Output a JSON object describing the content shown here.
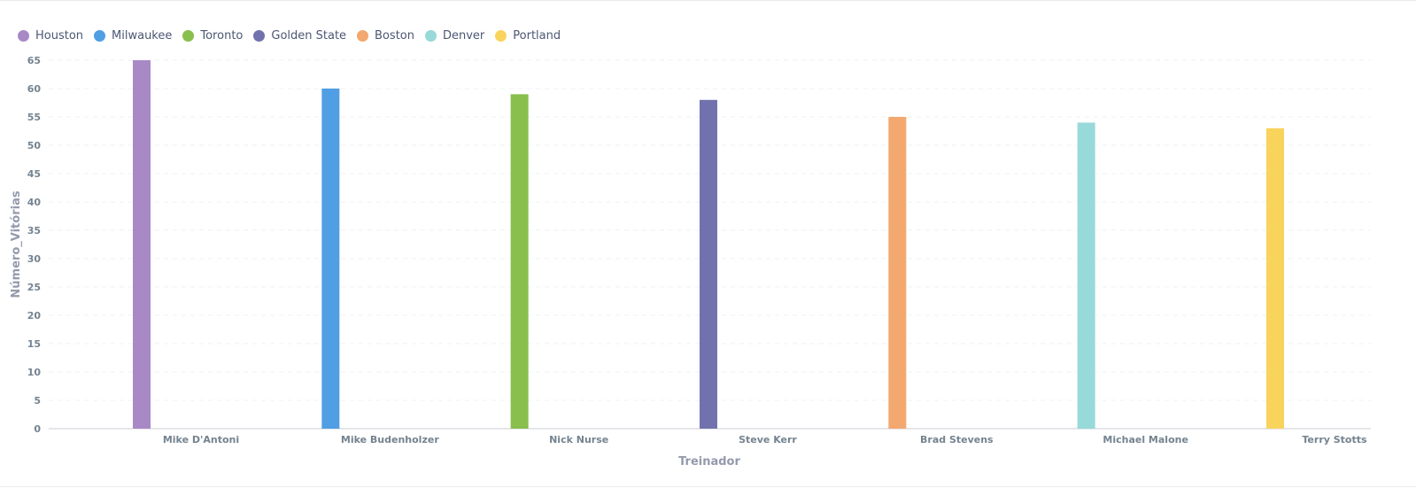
{
  "legend": [
    {
      "label": "Houston",
      "color": "#a989c5"
    },
    {
      "label": "Milwaukee",
      "color": "#509ee3"
    },
    {
      "label": "Toronto",
      "color": "#88bf4d"
    },
    {
      "label": "Golden State",
      "color": "#7172ad"
    },
    {
      "label": "Boston",
      "color": "#f2a86f"
    },
    {
      "label": "Denver",
      "color": "#98d9d9"
    },
    {
      "label": "Portland",
      "color": "#f9d45c"
    }
  ],
  "chart_data": {
    "type": "bar",
    "categories": [
      "Mike D'Antoni",
      "Mike Budenholzer",
      "Nick Nurse",
      "Steve Kerr",
      "Brad Stevens",
      "Michael Malone",
      "Terry Stotts"
    ],
    "series": [
      {
        "name": "Houston",
        "values": [
          65,
          null,
          null,
          null,
          null,
          null,
          null
        ]
      },
      {
        "name": "Milwaukee",
        "values": [
          null,
          60,
          null,
          null,
          null,
          null,
          null
        ]
      },
      {
        "name": "Toronto",
        "values": [
          null,
          null,
          59,
          null,
          null,
          null,
          null
        ]
      },
      {
        "name": "Golden State",
        "values": [
          null,
          null,
          null,
          58,
          null,
          null,
          null
        ]
      },
      {
        "name": "Boston",
        "values": [
          null,
          null,
          null,
          null,
          55,
          null,
          null
        ]
      },
      {
        "name": "Denver",
        "values": [
          null,
          null,
          null,
          null,
          null,
          54,
          null
        ]
      },
      {
        "name": "Portland",
        "values": [
          null,
          null,
          null,
          null,
          null,
          null,
          53
        ]
      }
    ],
    "xlabel": "Treinador",
    "ylabel": "Número_Vitórias",
    "ylim": [
      0,
      65
    ],
    "yticks": [
      0,
      5,
      10,
      15,
      20,
      25,
      30,
      35,
      40,
      45,
      50,
      55,
      60,
      65
    ],
    "grid": true,
    "legend_position": "top-left"
  }
}
